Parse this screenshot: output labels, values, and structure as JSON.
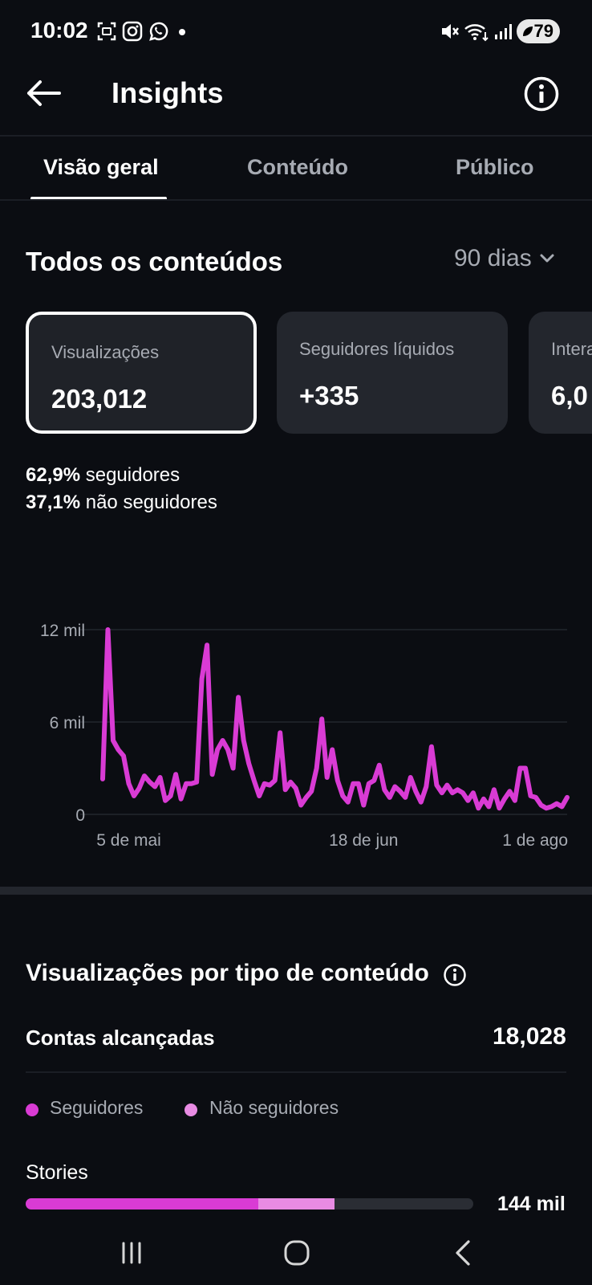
{
  "status_bar": {
    "time": "10:02",
    "battery": "79",
    "icons": [
      "screenshot-icon",
      "instagram-icon",
      "whatsapp-icon",
      "notification-dot",
      "mute-icon",
      "wifi-icon",
      "signal-icon",
      "battery-icon"
    ]
  },
  "app_bar": {
    "title": "Insights",
    "back_icon": "arrow-left-icon",
    "info_icon": "info-icon"
  },
  "tabs": [
    {
      "label": "Visão geral",
      "active": true
    },
    {
      "label": "Conteúdo",
      "active": false
    },
    {
      "label": "Público",
      "active": false
    }
  ],
  "overview": {
    "title": "Todos os conteúdos",
    "range": "90 dias",
    "cards": [
      {
        "label": "Visualizações",
        "value": "203,012",
        "selected": true
      },
      {
        "label": "Seguidores líquidos",
        "value": "+335",
        "selected": false
      },
      {
        "label": "Interações",
        "value": "6,0",
        "selected": false
      }
    ],
    "followers_pct": "62,9%",
    "followers_text": "seguidores",
    "non_followers_pct": "37,1%",
    "non_followers_text": "não seguidores"
  },
  "chart_data": {
    "type": "line",
    "x_ticks": [
      "5 de mai",
      "18 de jun",
      "1 de ago"
    ],
    "y_ticks": [
      "0",
      "6 mil",
      "12 mil"
    ],
    "ylim": [
      0,
      12000
    ],
    "grid": true,
    "color": "#d93bd4",
    "series": [
      {
        "values": [
          2300,
          12000,
          4800,
          4200,
          3800,
          2000,
          1200,
          1700,
          2500,
          2100,
          1800,
          2400,
          900,
          1200,
          2600,
          1000,
          2000,
          2000,
          2100,
          8800,
          11000,
          2600,
          4200,
          4800,
          4200,
          3000,
          7600,
          4800,
          3300,
          2200,
          1200,
          2000,
          1900,
          2200,
          5300,
          1600,
          2100,
          1700,
          600,
          1100,
          1500,
          3000,
          6200,
          2400,
          4200,
          2200,
          1200,
          800,
          2000,
          2000,
          600,
          2000,
          2200,
          3200,
          1600,
          1100,
          1800,
          1500,
          1100,
          2400,
          1500,
          800,
          1800,
          4400,
          1900,
          1400,
          1900,
          1400,
          1600,
          1400,
          900,
          1400,
          400,
          1000,
          500,
          1600,
          400,
          1000,
          1500,
          900,
          3000,
          3000,
          1200,
          1100,
          600,
          400,
          500,
          700,
          500,
          1100
        ]
      }
    ]
  },
  "content_type": {
    "title": "Visualizações por tipo de conteúdo",
    "accounts_label": "Contas alcançadas",
    "accounts_value": "18,028",
    "legend": [
      {
        "label": "Seguidores",
        "color": "#d93bd4"
      },
      {
        "label": "Não seguidores",
        "color": "#e88be3"
      }
    ],
    "rows": [
      {
        "label": "Stories",
        "value": "144 mil",
        "followers_share": 0.52,
        "non_followers_share": 0.17
      }
    ]
  },
  "nav_bar": {
    "icons": [
      "recent-apps-icon",
      "home-icon",
      "back-nav-icon"
    ]
  }
}
